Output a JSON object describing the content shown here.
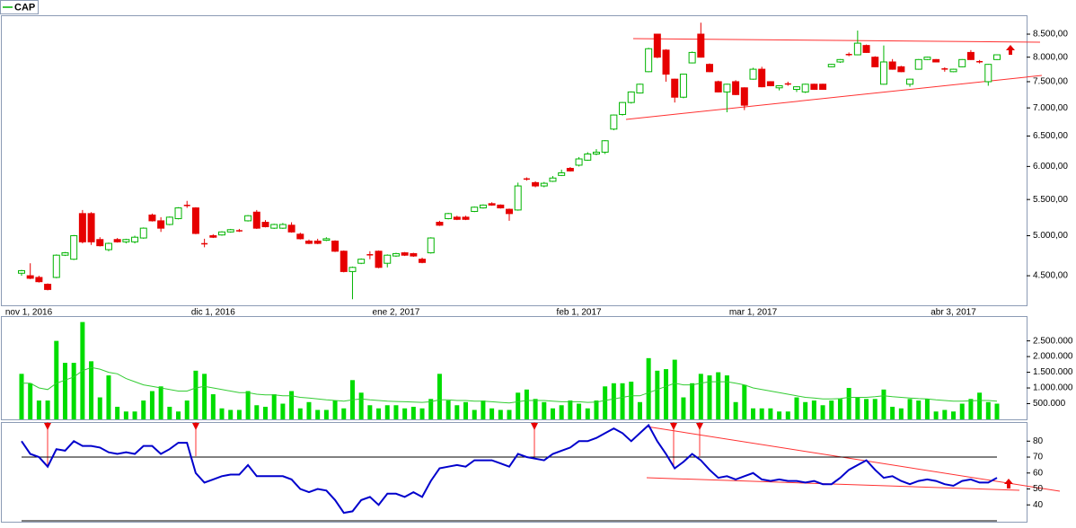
{
  "chart_data": [
    {
      "type": "candlestick",
      "name": "CAP",
      "legend_color": "#00b400",
      "up_color": "#00b400",
      "down_color": "#e60000",
      "log_scale": true,
      "categories": [
        "nov 1, 2016",
        null,
        null,
        null,
        null,
        null,
        null,
        null,
        null,
        null,
        null,
        null,
        null,
        null,
        null,
        null,
        null,
        null,
        null,
        null,
        null,
        null,
        "dic 1, 2016",
        null,
        null,
        null,
        null,
        null,
        null,
        null,
        null,
        null,
        null,
        null,
        null,
        null,
        null,
        null,
        null,
        null,
        null,
        null,
        null,
        "ene 2, 2017",
        null,
        null,
        null,
        null,
        null,
        null,
        null,
        null,
        null,
        null,
        null,
        null,
        null,
        null,
        null,
        null,
        null,
        null,
        null,
        null,
        "feb 1, 2017",
        null,
        null,
        null,
        null,
        null,
        null,
        null,
        null,
        null,
        null,
        null,
        null,
        null,
        null,
        null,
        null,
        null,
        null,
        null,
        "mar 1, 2017",
        null,
        null,
        null,
        null,
        null,
        null,
        null,
        null,
        null,
        null,
        null,
        null,
        null,
        null,
        null,
        null,
        null,
        null,
        null,
        null,
        null,
        null,
        "abr 3, 2017",
        null,
        null,
        null,
        null,
        null
      ],
      "open": [
        4530,
        4500,
        4480,
        4400,
        4480,
        4750,
        4700,
        5300,
        5300,
        4950,
        4820,
        4950,
        4920,
        4920,
        4970,
        5280,
        5200,
        5150,
        5230,
        5420,
        5380,
        4900,
        5000,
        5010,
        5050,
        5070,
        5200,
        5320,
        5180,
        5100,
        5100,
        5140,
        5020,
        4930,
        4930,
        4940,
        4930,
        4800,
        4550,
        4650,
        4760,
        4800,
        4650,
        4740,
        4780,
        4770,
        4700,
        4780,
        5180,
        5230,
        5250,
        5250,
        5330,
        5380,
        5440,
        5420,
        5360,
        5350,
        5810,
        5750,
        5700,
        5770,
        5860,
        5970,
        6020,
        6100,
        6200,
        6230,
        6620,
        6880,
        7100,
        7280,
        7700,
        8500,
        8150,
        7550,
        7200,
        7880,
        8500,
        7850,
        7500,
        7300,
        7500,
        7380,
        7550,
        7750,
        7500,
        7380,
        7460,
        7350,
        7300,
        7450,
        7450,
        7800,
        7900,
        8060,
        8050,
        8250,
        8000,
        7450,
        7900,
        7800,
        7450,
        7750,
        7950,
        7950,
        7760,
        7700,
        7800,
        8100,
        7910,
        7500,
        7950
      ],
      "high": [
        4570,
        4650,
        4500,
        4410,
        4760,
        4790,
        5010,
        5350,
        5320,
        4980,
        4910,
        4970,
        4960,
        5000,
        5110,
        5300,
        5250,
        5260,
        5390,
        5480,
        5390,
        4960,
        5020,
        5060,
        5090,
        5090,
        5280,
        5350,
        5210,
        5160,
        5170,
        5180,
        5040,
        4950,
        4960,
        4980,
        4940,
        4810,
        4610,
        4710,
        4800,
        4810,
        4760,
        4780,
        4790,
        4780,
        4720,
        4980,
        5200,
        5310,
        5270,
        5270,
        5400,
        5430,
        5460,
        5430,
        5370,
        5750,
        5830,
        5770,
        5760,
        5850,
        5950,
        5990,
        6150,
        6230,
        6280,
        6430,
        6880,
        7110,
        7310,
        7460,
        8200,
        8510,
        8170,
        7560,
        7660,
        8120,
        8760,
        7870,
        7520,
        7460,
        7530,
        7390,
        7780,
        7800,
        7510,
        7430,
        7500,
        7410,
        7460,
        7460,
        7460,
        7860,
        7960,
        8100,
        8580,
        8270,
        8020,
        8250,
        7960,
        7820,
        7560,
        7960,
        8010,
        7960,
        7790,
        7760,
        7960,
        8150,
        7940,
        7860,
        8060
      ],
      "low": [
        4500,
        4460,
        4420,
        4330,
        4470,
        4740,
        4690,
        4900,
        4880,
        4860,
        4800,
        4910,
        4900,
        4900,
        4960,
        5190,
        5050,
        5140,
        5220,
        5380,
        5020,
        4850,
        4970,
        5000,
        5040,
        5050,
        5190,
        5090,
        5110,
        5090,
        5090,
        5040,
        4950,
        4890,
        4890,
        4930,
        4790,
        4540,
        4230,
        4640,
        4700,
        4590,
        4600,
        4730,
        4740,
        4730,
        4650,
        4770,
        5130,
        5220,
        5210,
        5210,
        5320,
        5370,
        5410,
        5370,
        5200,
        5340,
        5780,
        5680,
        5680,
        5760,
        5850,
        5920,
        6000,
        6090,
        6180,
        6200,
        6600,
        6860,
        7080,
        7270,
        7690,
        7980,
        7500,
        7100,
        7180,
        7870,
        7990,
        7690,
        7290,
        6920,
        7240,
        6960,
        7540,
        7390,
        7410,
        7330,
        7420,
        7300,
        7280,
        7340,
        7340,
        7790,
        7880,
        8020,
        8040,
        8090,
        7790,
        7440,
        7740,
        7690,
        7400,
        7740,
        7940,
        7890,
        7700,
        7690,
        7790,
        7940,
        7870,
        7420,
        7940
      ],
      "close": [
        4560,
        4470,
        4430,
        4340,
        4750,
        4780,
        5000,
        4920,
        4920,
        4870,
        4900,
        4920,
        4950,
        4980,
        5100,
        5200,
        5100,
        5250,
        5380,
        5410,
        5030,
        4890,
        4980,
        5050,
        5080,
        5060,
        5270,
        5100,
        5120,
        5150,
        5150,
        5050,
        4960,
        4900,
        4900,
        4960,
        4800,
        4550,
        4600,
        4700,
        4750,
        4600,
        4750,
        4770,
        4750,
        4740,
        4660,
        4970,
        5140,
        5300,
        5220,
        5220,
        5390,
        5420,
        5420,
        5380,
        5300,
        5700,
        5800,
        5700,
        5740,
        5820,
        5900,
        5930,
        6120,
        6200,
        6230,
        6420,
        6870,
        7100,
        7300,
        7450,
        8180,
        8000,
        7650,
        7200,
        7650,
        8100,
        8000,
        7700,
        7300,
        7450,
        7250,
        7050,
        7750,
        7400,
        7420,
        7420,
        7450,
        7400,
        7450,
        7350,
        7350,
        7850,
        7950,
        8050,
        8300,
        8100,
        7800,
        7900,
        7750,
        7700,
        7550,
        7950,
        8000,
        7900,
        7750,
        7750,
        7950,
        7950,
        7900,
        7850,
        8050
      ],
      "ylim": [
        4163,
        8933
      ],
      "yticks": [
        {
          "value": 4500,
          "label": "4.500,00"
        },
        {
          "value": 5000,
          "label": "5.000,00"
        },
        {
          "value": 5500,
          "label": "5.500,00"
        },
        {
          "value": 6000,
          "label": "6.000,00"
        },
        {
          "value": 6500,
          "label": "6.500,00"
        },
        {
          "value": 7000,
          "label": "7.000,00"
        },
        {
          "value": 7500,
          "label": "7.500,00"
        },
        {
          "value": 8000,
          "label": "8.000,00"
        },
        {
          "value": 8500,
          "label": "8.500,00"
        }
      ]
    },
    {
      "type": "bar",
      "color": "#00dd00",
      "average_color": "#33cc33",
      "values": [
        1450000,
        1150000,
        600000,
        600000,
        2500000,
        1800000,
        1800000,
        3100000,
        1850000,
        700000,
        1400000,
        400000,
        250000,
        250000,
        600000,
        900000,
        1050000,
        400000,
        250000,
        600000,
        1550000,
        1450000,
        800000,
        350000,
        300000,
        300000,
        900000,
        450000,
        400000,
        800000,
        500000,
        900000,
        350000,
        550000,
        300000,
        300000,
        600000,
        350000,
        1250000,
        850000,
        450000,
        350000,
        450000,
        450000,
        350000,
        400000,
        350000,
        650000,
        1450000,
        600000,
        450000,
        550000,
        300000,
        600000,
        350000,
        300000,
        300000,
        850000,
        950000,
        650000,
        550000,
        350000,
        450000,
        600000,
        500000,
        350000,
        600000,
        1050000,
        1150000,
        1150000,
        1200000,
        550000,
        1950000,
        1550000,
        1600000,
        1900000,
        700000,
        1150000,
        1450000,
        1400000,
        1500000,
        1400000,
        550000,
        1100000,
        350000,
        350000,
        350000,
        250000,
        250000,
        700000,
        550000,
        600000,
        450000,
        600000,
        650000,
        1000000,
        700000,
        650000,
        650000,
        950000,
        400000,
        350000,
        650000,
        600000,
        650000,
        250000,
        300000,
        250000,
        500000,
        650000,
        850000,
        550000,
        500000
      ],
      "average": [
        1150000,
        1150000,
        1000000,
        950000,
        1150000,
        1250000,
        1350000,
        1550000,
        1650000,
        1600000,
        1500000,
        1450000,
        1300000,
        1200000,
        1100000,
        1050000,
        1000000,
        950000,
        900000,
        900000,
        1000000,
        1050000,
        1000000,
        950000,
        900000,
        850000,
        850000,
        800000,
        780000,
        780000,
        750000,
        750000,
        700000,
        680000,
        650000,
        620000,
        600000,
        580000,
        620000,
        650000,
        620000,
        600000,
        580000,
        570000,
        560000,
        550000,
        540000,
        560000,
        620000,
        620000,
        600000,
        600000,
        580000,
        580000,
        560000,
        540000,
        520000,
        560000,
        600000,
        600000,
        600000,
        580000,
        560000,
        560000,
        560000,
        540000,
        550000,
        600000,
        650000,
        700000,
        750000,
        750000,
        850000,
        950000,
        1050000,
        1150000,
        1100000,
        1100000,
        1150000,
        1200000,
        1200000,
        1200000,
        1150000,
        1100000,
        1000000,
        950000,
        900000,
        850000,
        800000,
        750000,
        700000,
        680000,
        650000,
        650000,
        660000,
        700000,
        700000,
        700000,
        720000,
        750000,
        720000,
        700000,
        680000,
        660000,
        650000,
        620000,
        600000,
        580000,
        580000,
        590000,
        600000,
        600000,
        580000
      ],
      "ylim": [
        0,
        3290000
      ],
      "yticks": [
        {
          "value": 500000,
          "label": "500.000"
        },
        {
          "value": 1000000,
          "label": "1.000.000"
        },
        {
          "value": 1500000,
          "label": "1.500.000"
        },
        {
          "value": 2000000,
          "label": "2.000.000"
        },
        {
          "value": 2500000,
          "label": "2.500.000"
        }
      ]
    },
    {
      "type": "line",
      "color": "#0000cc",
      "reference_lines": [
        70,
        30
      ],
      "values": [
        80,
        72,
        70,
        64,
        75,
        74,
        80,
        77,
        77,
        76,
        73,
        72,
        73,
        72,
        77,
        77,
        72,
        75,
        79,
        79,
        60,
        54,
        56,
        58,
        59,
        59,
        65,
        58,
        58,
        58,
        58,
        56,
        50,
        48,
        50,
        49,
        43,
        35,
        36,
        43,
        45,
        40,
        47,
        47,
        45,
        48,
        45,
        55,
        63,
        64,
        65,
        64,
        68,
        68,
        68,
        66,
        64,
        72,
        70,
        69,
        68,
        72,
        74,
        76,
        80,
        80,
        82,
        85,
        88,
        85,
        80,
        85,
        90,
        80,
        72,
        63,
        67,
        72,
        68,
        62,
        57,
        58,
        56,
        58,
        60,
        56,
        55,
        56,
        55,
        55,
        54,
        55,
        53,
        53,
        57,
        62,
        65,
        68,
        62,
        57,
        58,
        55,
        53,
        55,
        56,
        55,
        53,
        52,
        55,
        56,
        54,
        54,
        57
      ],
      "ylim": [
        30,
        92
      ],
      "yticks": [
        40,
        50,
        60,
        70,
        80
      ]
    }
  ]
}
